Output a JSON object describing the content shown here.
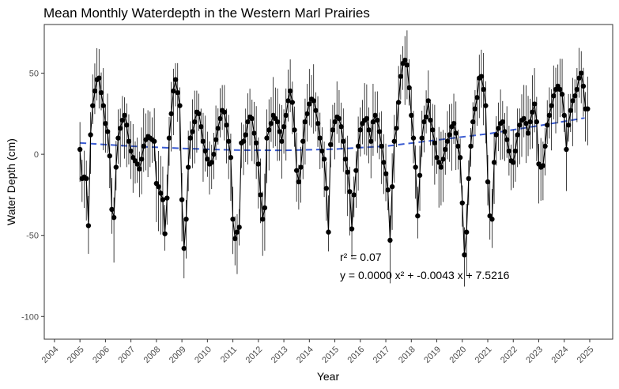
{
  "chart_data": {
    "type": "scatter",
    "title": "Mean Monthly Waterdepth in the Western Marl Prairies",
    "xlabel": "Year",
    "ylabel": "Water Depth (cm)",
    "xlim": [
      2003.6,
      2025.9
    ],
    "ylim": [
      -114,
      80
    ],
    "x_ticks": [
      "2004",
      "2005",
      "2006",
      "2007",
      "2008",
      "2009",
      "2010",
      "2011",
      "2012",
      "2013",
      "2014",
      "2015",
      "2016",
      "2017",
      "2018",
      "2019",
      "2020",
      "2021",
      "2022",
      "2023",
      "2024",
      "2025"
    ],
    "y_ticks": [
      -100,
      -50,
      0,
      50
    ],
    "grid": false,
    "legend": "none",
    "error_bars": true,
    "annotations": [
      "r² = 0.07",
      "y = 0.0000 x² + -0.0043 x + 7.5216"
    ],
    "trend_line": {
      "style": "dashed",
      "color": "#3a5bd1",
      "points": [
        [
          2005.0,
          7.0
        ],
        [
          2007.0,
          5.0
        ],
        [
          2009.0,
          3.6
        ],
        [
          2011.0,
          2.6
        ],
        [
          2013.0,
          2.4
        ],
        [
          2015.0,
          3.2
        ],
        [
          2017.0,
          5.0
        ],
        [
          2019.0,
          8.8
        ],
        [
          2021.0,
          12.6
        ],
        [
          2023.0,
          17.6
        ],
        [
          2024.8,
          22.4
        ]
      ]
    },
    "series": [
      {
        "values": [
          [
            2005.0,
            3
          ],
          [
            2005.083,
            -15
          ],
          [
            2005.167,
            -14
          ],
          [
            2005.25,
            -15
          ],
          [
            2005.333,
            -44
          ],
          [
            2005.417,
            12
          ],
          [
            2005.5,
            30
          ],
          [
            2005.583,
            39
          ],
          [
            2005.667,
            46
          ],
          [
            2005.75,
            47
          ],
          [
            2005.833,
            38
          ],
          [
            2005.917,
            30
          ],
          [
            2006.0,
            19
          ],
          [
            2006.083,
            14
          ],
          [
            2006.167,
            -1
          ],
          [
            2006.25,
            -34
          ],
          [
            2006.333,
            -39
          ],
          [
            2006.417,
            -8
          ],
          [
            2006.5,
            10
          ],
          [
            2006.583,
            16
          ],
          [
            2006.667,
            21
          ],
          [
            2006.75,
            24
          ],
          [
            2006.833,
            18
          ],
          [
            2006.917,
            8
          ],
          [
            2007.0,
            2
          ],
          [
            2007.083,
            -2
          ],
          [
            2007.167,
            -4
          ],
          [
            2007.25,
            -6
          ],
          [
            2007.333,
            -9
          ],
          [
            2007.417,
            -3
          ],
          [
            2007.5,
            5
          ],
          [
            2007.583,
            9
          ],
          [
            2007.667,
            11
          ],
          [
            2007.75,
            10
          ],
          [
            2007.833,
            9
          ],
          [
            2007.917,
            8
          ],
          [
            2008.0,
            -18
          ],
          [
            2008.083,
            -20
          ],
          [
            2008.167,
            -24
          ],
          [
            2008.25,
            -28
          ],
          [
            2008.333,
            -49
          ],
          [
            2008.417,
            -27
          ],
          [
            2008.5,
            10
          ],
          [
            2008.583,
            25
          ],
          [
            2008.667,
            39
          ],
          [
            2008.75,
            46
          ],
          [
            2008.833,
            38
          ],
          [
            2008.917,
            30
          ],
          [
            2009.0,
            -28
          ],
          [
            2009.083,
            -58
          ],
          [
            2009.167,
            -40
          ],
          [
            2009.25,
            -8
          ],
          [
            2009.333,
            10
          ],
          [
            2009.417,
            14
          ],
          [
            2009.5,
            20
          ],
          [
            2009.583,
            26
          ],
          [
            2009.667,
            25
          ],
          [
            2009.75,
            17
          ],
          [
            2009.833,
            8
          ],
          [
            2009.917,
            2
          ],
          [
            2010.0,
            -3
          ],
          [
            2010.083,
            -6
          ],
          [
            2010.167,
            -5
          ],
          [
            2010.25,
            0
          ],
          [
            2010.333,
            9
          ],
          [
            2010.417,
            16
          ],
          [
            2010.5,
            22
          ],
          [
            2010.583,
            27
          ],
          [
            2010.667,
            26
          ],
          [
            2010.75,
            18
          ],
          [
            2010.833,
            8
          ],
          [
            2010.917,
            -2
          ],
          [
            2011.0,
            -40
          ],
          [
            2011.083,
            -52
          ],
          [
            2011.167,
            -48
          ],
          [
            2011.25,
            -45
          ],
          [
            2011.333,
            7
          ],
          [
            2011.417,
            8
          ],
          [
            2011.5,
            12
          ],
          [
            2011.583,
            20
          ],
          [
            2011.667,
            23
          ],
          [
            2011.75,
            22
          ],
          [
            2011.833,
            13
          ],
          [
            2011.917,
            7
          ],
          [
            2012.0,
            -6
          ],
          [
            2012.083,
            -25
          ],
          [
            2012.167,
            -40
          ],
          [
            2012.25,
            -33
          ],
          [
            2012.333,
            10
          ],
          [
            2012.417,
            15
          ],
          [
            2012.5,
            19
          ],
          [
            2012.583,
            24
          ],
          [
            2012.667,
            22
          ],
          [
            2012.75,
            20
          ],
          [
            2012.833,
            14
          ],
          [
            2012.917,
            8
          ],
          [
            2013.0,
            17
          ],
          [
            2013.083,
            24
          ],
          [
            2013.167,
            33
          ],
          [
            2013.25,
            39
          ],
          [
            2013.333,
            32
          ],
          [
            2013.417,
            15
          ],
          [
            2013.5,
            -10
          ],
          [
            2013.583,
            -17
          ],
          [
            2013.667,
            -8
          ],
          [
            2013.75,
            8
          ],
          [
            2013.833,
            20
          ],
          [
            2013.917,
            25
          ],
          [
            2014.0,
            31
          ],
          [
            2014.083,
            34
          ],
          [
            2014.167,
            33
          ],
          [
            2014.25,
            27
          ],
          [
            2014.333,
            19
          ],
          [
            2014.417,
            10
          ],
          [
            2014.5,
            2
          ],
          [
            2014.583,
            -3
          ],
          [
            2014.667,
            -21
          ],
          [
            2014.75,
            -48
          ],
          [
            2014.833,
            6
          ],
          [
            2014.917,
            15
          ],
          [
            2015.0,
            20
          ],
          [
            2015.083,
            23
          ],
          [
            2015.167,
            22
          ],
          [
            2015.25,
            17
          ],
          [
            2015.333,
            8
          ],
          [
            2015.417,
            -3
          ],
          [
            2015.5,
            -11
          ],
          [
            2015.583,
            -23
          ],
          [
            2015.667,
            -46
          ],
          [
            2015.75,
            -25
          ],
          [
            2015.833,
            -10
          ],
          [
            2015.917,
            5
          ],
          [
            2016.0,
            15
          ],
          [
            2016.083,
            19
          ],
          [
            2016.167,
            21
          ],
          [
            2016.25,
            22
          ],
          [
            2016.333,
            15
          ],
          [
            2016.417,
            8
          ],
          [
            2016.5,
            20
          ],
          [
            2016.583,
            24
          ],
          [
            2016.667,
            21
          ],
          [
            2016.75,
            14
          ],
          [
            2016.833,
            5
          ],
          [
            2016.917,
            -5
          ],
          [
            2017.0,
            -12
          ],
          [
            2017.083,
            -22
          ],
          [
            2017.167,
            -53
          ],
          [
            2017.25,
            -20
          ],
          [
            2017.333,
            8
          ],
          [
            2017.417,
            16
          ],
          [
            2017.5,
            32
          ],
          [
            2017.583,
            48
          ],
          [
            2017.667,
            56
          ],
          [
            2017.75,
            58
          ],
          [
            2017.833,
            55
          ],
          [
            2017.917,
            41
          ],
          [
            2018.0,
            24
          ],
          [
            2018.083,
            10
          ],
          [
            2018.167,
            -8
          ],
          [
            2018.25,
            -38
          ],
          [
            2018.333,
            -13
          ],
          [
            2018.417,
            10
          ],
          [
            2018.5,
            20
          ],
          [
            2018.583,
            23
          ],
          [
            2018.667,
            33
          ],
          [
            2018.75,
            21
          ],
          [
            2018.833,
            15
          ],
          [
            2018.917,
            7
          ],
          [
            2019.0,
            -2
          ],
          [
            2019.083,
            -5
          ],
          [
            2019.167,
            -8
          ],
          [
            2019.25,
            -3
          ],
          [
            2019.333,
            3
          ],
          [
            2019.417,
            8
          ],
          [
            2019.5,
            12
          ],
          [
            2019.583,
            17
          ],
          [
            2019.667,
            19
          ],
          [
            2019.75,
            13
          ],
          [
            2019.833,
            5
          ],
          [
            2019.917,
            -2
          ],
          [
            2020.0,
            -30
          ],
          [
            2020.083,
            -62
          ],
          [
            2020.167,
            -48
          ],
          [
            2020.25,
            -15
          ],
          [
            2020.333,
            5
          ],
          [
            2020.417,
            20
          ],
          [
            2020.5,
            28
          ],
          [
            2020.583,
            35
          ],
          [
            2020.667,
            47
          ],
          [
            2020.75,
            48
          ],
          [
            2020.833,
            40
          ],
          [
            2020.917,
            30
          ],
          [
            2021.0,
            -17
          ],
          [
            2021.083,
            -38
          ],
          [
            2021.167,
            -40
          ],
          [
            2021.25,
            -5
          ],
          [
            2021.333,
            12
          ],
          [
            2021.417,
            16
          ],
          [
            2021.5,
            19
          ],
          [
            2021.583,
            20
          ],
          [
            2021.667,
            14
          ],
          [
            2021.75,
            9
          ],
          [
            2021.833,
            2
          ],
          [
            2021.917,
            -4
          ],
          [
            2022.0,
            -5
          ],
          [
            2022.083,
            2
          ],
          [
            2022.167,
            12
          ],
          [
            2022.25,
            18
          ],
          [
            2022.333,
            21
          ],
          [
            2022.417,
            22
          ],
          [
            2022.5,
            19
          ],
          [
            2022.583,
            13
          ],
          [
            2022.667,
            20
          ],
          [
            2022.75,
            26
          ],
          [
            2022.833,
            31
          ],
          [
            2022.917,
            20
          ],
          [
            2023.0,
            -6
          ],
          [
            2023.083,
            -8
          ],
          [
            2023.167,
            -7
          ],
          [
            2023.25,
            5
          ],
          [
            2023.333,
            18
          ],
          [
            2023.417,
            24
          ],
          [
            2023.5,
            30
          ],
          [
            2023.583,
            36
          ],
          [
            2023.667,
            40
          ],
          [
            2023.75,
            42
          ],
          [
            2023.833,
            40
          ],
          [
            2023.917,
            37
          ],
          [
            2024.0,
            24
          ],
          [
            2024.083,
            3
          ],
          [
            2024.167,
            18
          ],
          [
            2024.25,
            27
          ],
          [
            2024.333,
            33
          ],
          [
            2024.417,
            36
          ],
          [
            2024.5,
            40
          ],
          [
            2024.583,
            47
          ],
          [
            2024.667,
            50
          ],
          [
            2024.75,
            42
          ],
          [
            2024.833,
            28
          ],
          [
            2024.917,
            28
          ]
        ]
      }
    ]
  }
}
